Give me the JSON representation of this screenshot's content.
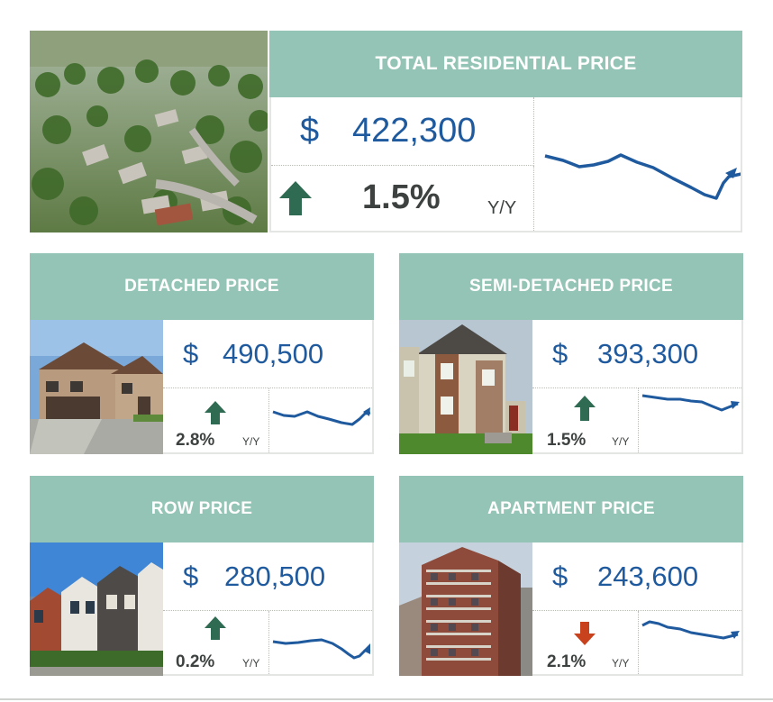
{
  "colors": {
    "header_bg": "#94c4b5",
    "price_blue": "#1f5a9e",
    "up_green": "#2e6b52",
    "down_red": "#c8421e",
    "text_dark": "#3d4240"
  },
  "total": {
    "title": "TOTAL RESIDENTIAL PRICE",
    "currency": "$",
    "price": "422,300",
    "change": "1.5%",
    "period": "Y/Y",
    "direction": "up",
    "trend_icon": "up-arrow-icon"
  },
  "cards": {
    "detached": {
      "title": "DETACHED PRICE",
      "currency": "$",
      "price": "490,500",
      "change": "2.8%",
      "period": "Y/Y",
      "direction": "up"
    },
    "semi": {
      "title": "SEMI-DETACHED PRICE",
      "currency": "$",
      "price": "393,300",
      "change": "1.5%",
      "period": "Y/Y",
      "direction": "up"
    },
    "row": {
      "title": "ROW PRICE",
      "currency": "$",
      "price": "280,500",
      "change": "0.2%",
      "period": "Y/Y",
      "direction": "up"
    },
    "apartment": {
      "title": "APARTMENT PRICE",
      "currency": "$",
      "price": "243,600",
      "change": "2.1%",
      "period": "Y/Y",
      "direction": "down"
    }
  }
}
